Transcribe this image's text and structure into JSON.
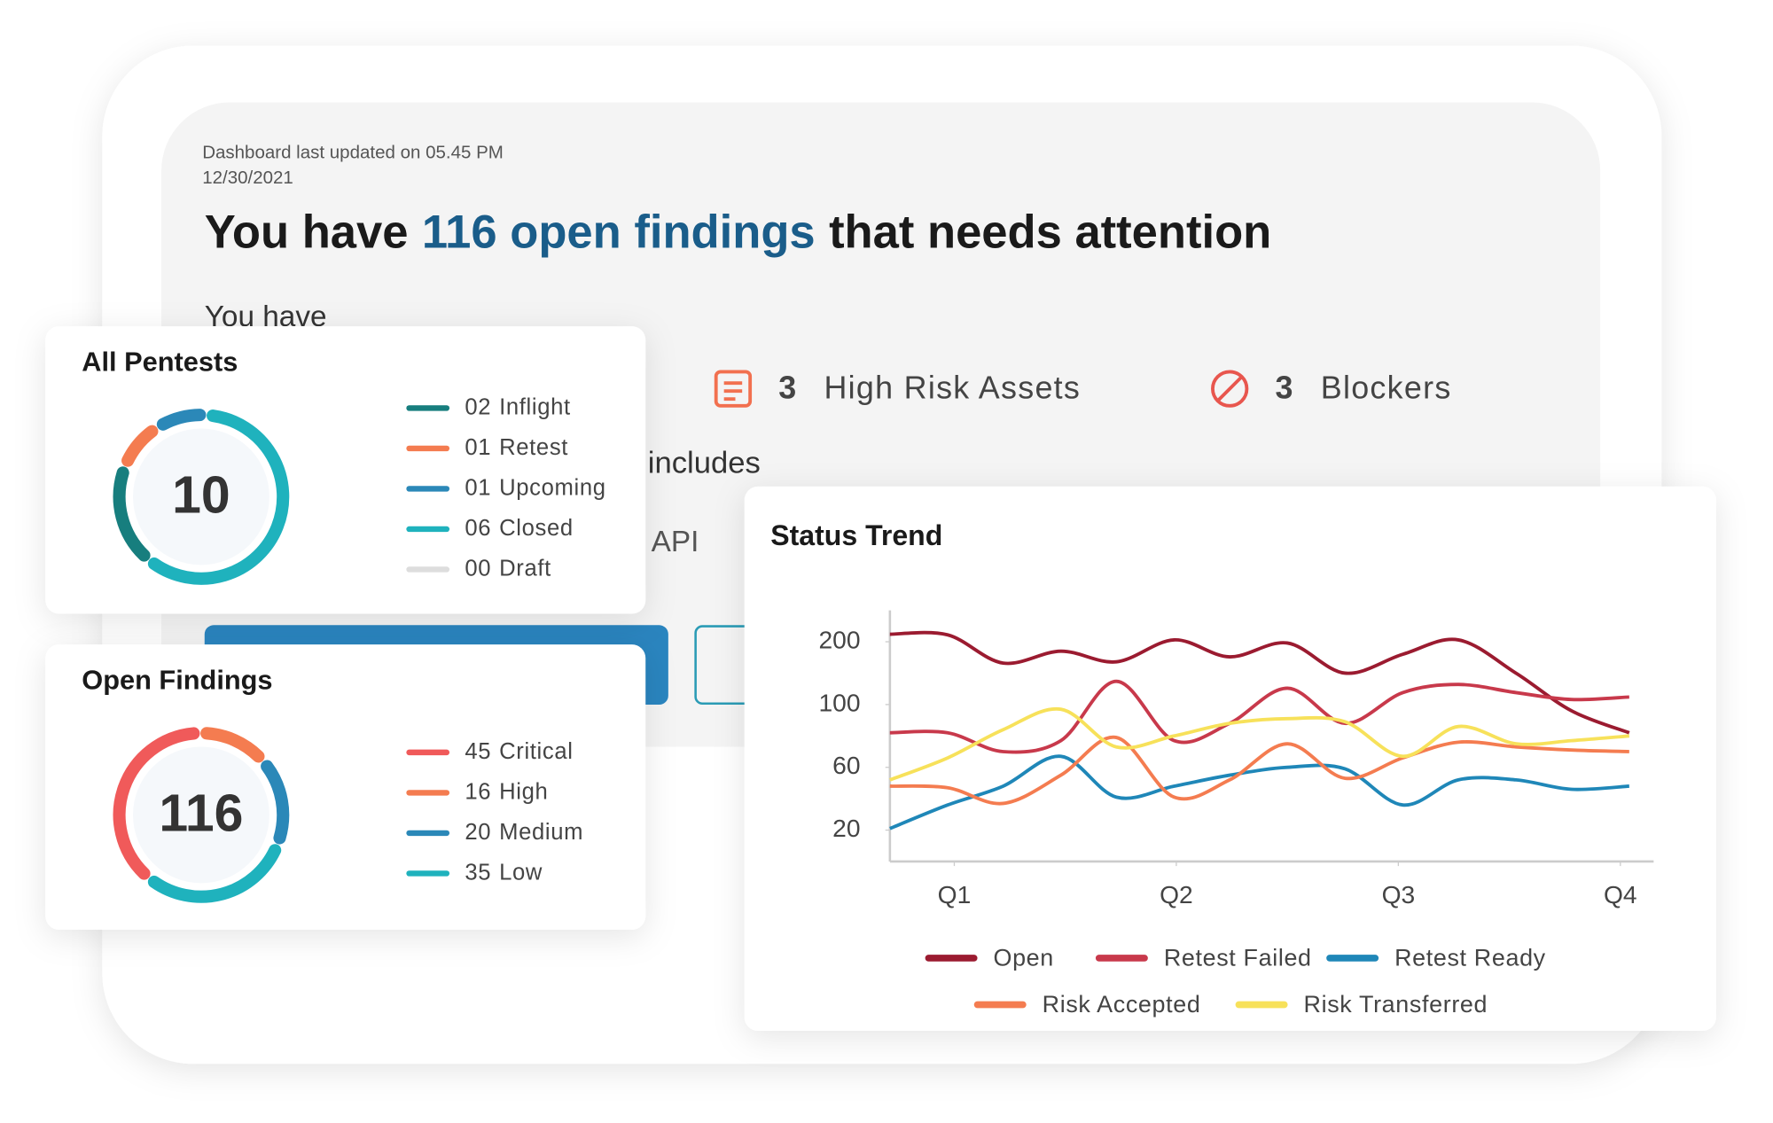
{
  "header": {
    "updated": "Dashboard last updated on 05.45 PM",
    "date": "12/30/2021",
    "headline": {
      "prefix": "You have",
      "highlight": "116 open findings",
      "suffix": "that needs attention"
    }
  },
  "summary": {
    "intro": "You have",
    "stats": [
      {
        "count": 3,
        "label": "High Risk Assets"
      },
      {
        "count": 3,
        "label": "Blockers"
      }
    ],
    "includes": "includes",
    "api": "API"
  },
  "pentests": {
    "title": "All Pentests",
    "total": 10,
    "items": [
      {
        "count": 2,
        "count_label": "02",
        "name": "Inflight",
        "color": "#177e7e"
      },
      {
        "count": 1,
        "count_label": "01",
        "name": "Retest",
        "color": "#f47c50"
      },
      {
        "count": 1,
        "count_label": "01",
        "name": "Upcoming",
        "color": "#2b88b8"
      },
      {
        "count": 6,
        "count_label": "06",
        "name": "Closed",
        "color": "#1fb2bd"
      },
      {
        "count": 0,
        "count_label": "00",
        "name": "Draft",
        "color": "#dddddd"
      }
    ]
  },
  "findings": {
    "title": "Open Findings",
    "total": 116,
    "items": [
      {
        "count": 45,
        "name": "Critical",
        "color": "#f05a5a"
      },
      {
        "count": 16,
        "name": "High",
        "color": "#f47c50"
      },
      {
        "count": 20,
        "name": "Medium",
        "color": "#2b88b8"
      },
      {
        "count": 35,
        "name": "Low",
        "color": "#1fb2bd"
      }
    ]
  },
  "chart_data": {
    "type": "line",
    "title": "Status Trend",
    "x": [
      0.71,
      0.97,
      1.22,
      1.48,
      1.73,
      1.99,
      2.24,
      2.5,
      2.76,
      3.02,
      3.27,
      3.53,
      3.78,
      4.04
    ],
    "xlim": [
      0.71,
      4.15
    ],
    "xticks": [
      {
        "value": 1,
        "label": "Q1"
      },
      {
        "value": 2,
        "label": "Q2"
      },
      {
        "value": 3,
        "label": "Q3"
      },
      {
        "value": 4,
        "label": "Q4"
      }
    ],
    "ylim": [
      0,
      250
    ],
    "yticks": [
      20,
      60,
      100,
      200
    ],
    "legend": "bottom",
    "grid": false,
    "series": [
      {
        "name": "Open",
        "color": "#9b1b30",
        "values": [
          212,
          211,
          166,
          185,
          168,
          203,
          176,
          198,
          150,
          180,
          203,
          150,
          96,
          82
        ]
      },
      {
        "name": "Retest Failed",
        "color": "#c8394b",
        "values": [
          82,
          82,
          70,
          77,
          137,
          77,
          88,
          126,
          88,
          119,
          132,
          119,
          108,
          112
        ]
      },
      {
        "name": "Retest Ready",
        "color": "#1f87b8",
        "values": [
          21,
          36,
          48,
          67,
          41,
          48,
          55,
          60,
          59,
          36,
          52,
          52,
          46,
          48
        ]
      },
      {
        "name": "Risk Accepted",
        "color": "#f47c50",
        "values": [
          48,
          47,
          37,
          55,
          79,
          41,
          52,
          75,
          53,
          66,
          76,
          73,
          71,
          70
        ]
      },
      {
        "name": "Risk Transferred",
        "color": "#f7e15a",
        "values": [
          52,
          66,
          84,
          97,
          73,
          80,
          88,
          91,
          89,
          67,
          86,
          75,
          77,
          80
        ]
      }
    ]
  }
}
